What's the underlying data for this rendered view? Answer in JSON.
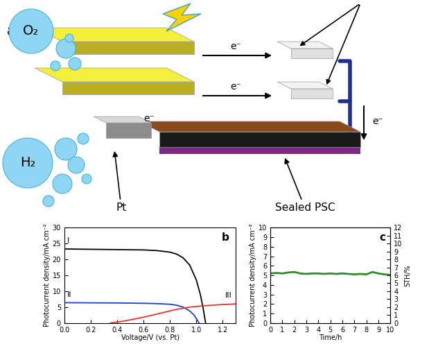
{
  "diagram": {
    "panel_label": "a",
    "gases": [
      "O₂",
      "H₂"
    ],
    "electron_labels": [
      "e⁻",
      "e⁻",
      "e⁻",
      "e⁻"
    ],
    "electrode_label": "Pt",
    "cell_label": "Sealed PSC"
  },
  "chart_data": [
    {
      "type": "line",
      "panel_label": "b",
      "x_label": "Voltage/V (vs. Pt)",
      "y_label": "Photocurrent density/mA cm⁻²",
      "xlim": [
        0.0,
        1.3
      ],
      "xticks": [
        0.0,
        0.2,
        0.4,
        0.6,
        0.8,
        1.0,
        1.2
      ],
      "ylim": [
        0,
        30
      ],
      "yticks": [
        0,
        5,
        10,
        15,
        20,
        25,
        30
      ],
      "series": [
        {
          "name": "I",
          "color": "#000000",
          "x": [
            0.0,
            0.2,
            0.4,
            0.6,
            0.7,
            0.8,
            0.85,
            0.9,
            0.95,
            1.0,
            1.03,
            1.05,
            1.07
          ],
          "values": [
            23.3,
            23.2,
            23.1,
            23.0,
            22.8,
            22.3,
            21.7,
            20.5,
            18.2,
            13.5,
            9.0,
            5.0,
            0.0
          ]
        },
        {
          "name": "II",
          "color": "#1f3fbf",
          "x": [
            0.0,
            0.2,
            0.4,
            0.6,
            0.7,
            0.8,
            0.85,
            0.9,
            0.95,
            0.98,
            1.0,
            1.02
          ],
          "values": [
            6.4,
            6.35,
            6.3,
            6.2,
            6.1,
            5.9,
            5.6,
            5.0,
            3.8,
            2.6,
            1.4,
            0.0
          ]
        },
        {
          "name": "III",
          "color": "#e8322a",
          "x": [
            0.35,
            0.45,
            0.55,
            0.65,
            0.75,
            0.85,
            0.95,
            1.05,
            1.15,
            1.3
          ],
          "values": [
            0.0,
            0.6,
            1.4,
            2.3,
            3.3,
            4.3,
            5.0,
            5.4,
            5.7,
            6.0
          ]
        }
      ]
    },
    {
      "type": "line",
      "panel_label": "c",
      "x_label": "Time/h",
      "y_label": "Photocurrent density/mA cm⁻²",
      "y2_label": "STH/%",
      "xlim": [
        0,
        10
      ],
      "xticks": [
        0,
        1,
        2,
        3,
        4,
        5,
        6,
        7,
        8,
        9,
        10
      ],
      "ylim": [
        0,
        10
      ],
      "yticks": [
        0,
        1,
        2,
        3,
        4,
        5,
        6,
        7,
        8,
        9,
        10
      ],
      "y2lim": [
        0,
        12
      ],
      "y2ticks": [
        0,
        1,
        2,
        3,
        4,
        5,
        6,
        7,
        8,
        9,
        10,
        11,
        12
      ],
      "series": [
        {
          "color": "#2e8b2e",
          "x": [
            0,
            0.5,
            1,
            1.5,
            2,
            2.5,
            3,
            3.5,
            4,
            4.5,
            5,
            5.5,
            6,
            6.5,
            7,
            7.5,
            8,
            8.5,
            9,
            9.5,
            10
          ],
          "values": [
            5.2,
            5.25,
            5.2,
            5.3,
            5.35,
            5.2,
            5.15,
            5.2,
            5.2,
            5.15,
            5.2,
            5.15,
            5.2,
            5.15,
            5.1,
            5.15,
            5.1,
            5.35,
            5.2,
            5.1,
            5.05
          ]
        }
      ]
    }
  ]
}
